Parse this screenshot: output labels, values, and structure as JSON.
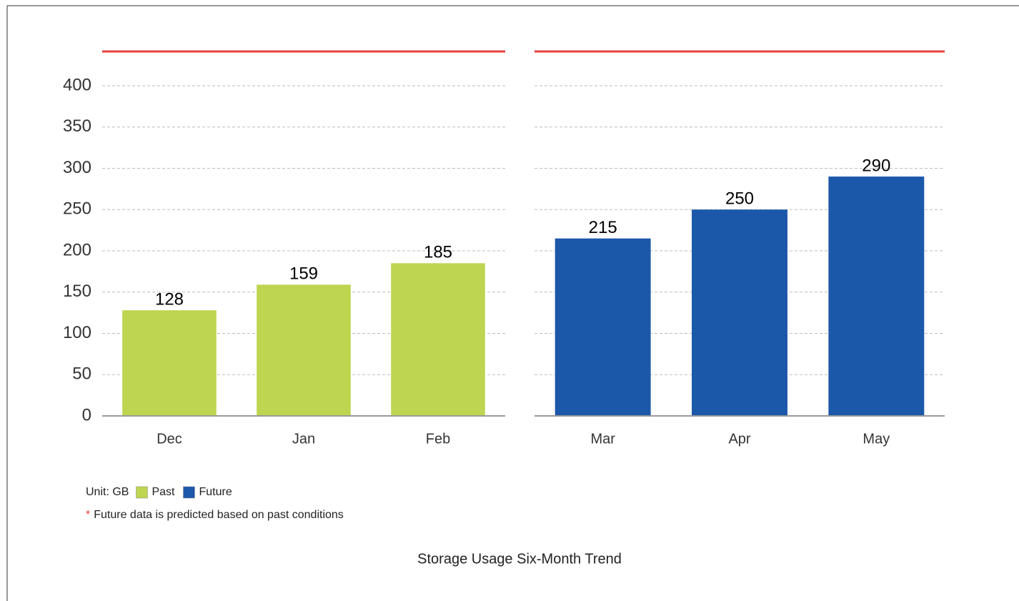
{
  "chart_data": {
    "type": "bar",
    "title": "Storage Usage Six-Month Trend",
    "unit_label": "Unit: GB",
    "note_marker": "*",
    "note": "Future data is predicted based on past conditions",
    "categories": [
      "Dec",
      "Jan",
      "Feb",
      "Mar",
      "Apr",
      "May"
    ],
    "series": [
      {
        "name": "Past",
        "color": "#bdd550",
        "values": [
          128,
          159,
          185,
          null,
          null,
          null
        ]
      },
      {
        "name": "Future",
        "color": "#1c58aa",
        "values": [
          null,
          null,
          null,
          215,
          250,
          290
        ]
      }
    ],
    "ylim": [
      0,
      400
    ],
    "yticks": [
      0,
      50,
      100,
      150,
      200,
      250,
      300,
      350,
      400
    ],
    "grid": true
  }
}
